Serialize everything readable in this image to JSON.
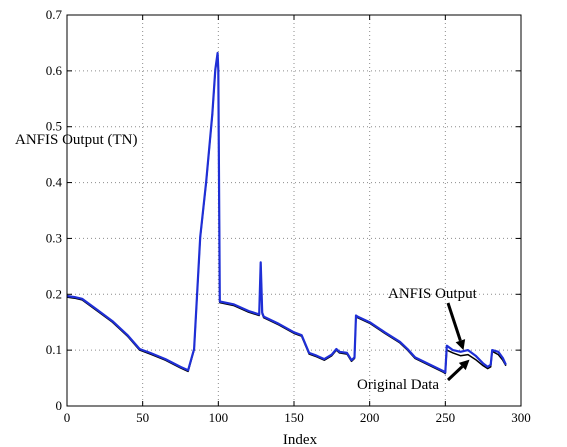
{
  "chart_data": {
    "type": "line",
    "title": "",
    "xlabel": "Index",
    "ylabel": "ANFIS Output  (TN)",
    "xlim": [
      0,
      300
    ],
    "ylim": [
      0,
      0.7
    ],
    "xticks": [
      0,
      50,
      100,
      150,
      200,
      250,
      300
    ],
    "yticks": [
      0,
      0.1,
      0.2,
      0.3,
      0.4,
      0.5,
      0.6,
      0.7
    ],
    "xtick_labels": [
      "0",
      "50",
      "100",
      "150",
      "200",
      "250",
      "300"
    ],
    "ytick_labels": [
      "0",
      "0.1",
      "0.2",
      "0.3",
      "0.4",
      "0.5",
      "0.6",
      "0.7"
    ],
    "grid": true,
    "series": [
      {
        "name": "Original Data",
        "color": "#000000",
        "x": [
          0,
          5,
          10,
          20,
          30,
          40,
          48,
          55,
          65,
          75,
          80,
          84,
          88,
          92,
          96,
          98,
          99.5,
          100,
          101,
          110,
          120,
          127,
          128,
          129,
          130,
          140,
          150,
          155,
          160,
          165,
          170,
          175,
          178,
          180,
          185,
          188,
          190,
          191,
          192,
          200,
          210,
          220,
          225,
          230,
          240,
          249,
          250,
          251,
          255,
          260,
          265,
          270,
          275,
          278,
          280,
          281,
          285,
          288,
          290
        ],
        "y": [
          0.195,
          0.193,
          0.19,
          0.17,
          0.15,
          0.125,
          0.1,
          0.093,
          0.082,
          0.068,
          0.062,
          0.1,
          0.3,
          0.4,
          0.52,
          0.6,
          0.63,
          0.6,
          0.185,
          0.18,
          0.168,
          0.162,
          0.255,
          0.165,
          0.158,
          0.145,
          0.13,
          0.125,
          0.093,
          0.088,
          0.082,
          0.09,
          0.1,
          0.095,
          0.093,
          0.08,
          0.085,
          0.16,
          0.158,
          0.148,
          0.13,
          0.113,
          0.1,
          0.085,
          0.072,
          0.06,
          0.058,
          0.1,
          0.095,
          0.09,
          0.092,
          0.083,
          0.072,
          0.067,
          0.07,
          0.098,
          0.092,
          0.082,
          0.072
        ]
      },
      {
        "name": "ANFIS Output",
        "color": "#1f2fd6",
        "x": [
          0,
          5,
          10,
          20,
          30,
          40,
          48,
          55,
          65,
          75,
          80,
          84,
          88,
          92,
          96,
          98,
          99.5,
          100,
          101,
          110,
          120,
          127,
          128,
          129,
          130,
          140,
          150,
          155,
          160,
          165,
          170,
          175,
          178,
          180,
          185,
          188,
          190,
          191,
          192,
          200,
          210,
          220,
          225,
          230,
          240,
          249,
          250,
          251,
          255,
          260,
          265,
          270,
          275,
          278,
          280,
          281,
          285,
          288,
          290
        ],
        "y": [
          0.197,
          0.195,
          0.192,
          0.172,
          0.152,
          0.127,
          0.102,
          0.095,
          0.084,
          0.07,
          0.064,
          0.102,
          0.302,
          0.402,
          0.522,
          0.602,
          0.632,
          0.602,
          0.187,
          0.182,
          0.17,
          0.164,
          0.257,
          0.167,
          0.16,
          0.147,
          0.132,
          0.127,
          0.095,
          0.09,
          0.084,
          0.092,
          0.102,
          0.097,
          0.095,
          0.082,
          0.087,
          0.162,
          0.16,
          0.15,
          0.132,
          0.115,
          0.102,
          0.087,
          0.074,
          0.062,
          0.06,
          0.108,
          0.1,
          0.097,
          0.1,
          0.09,
          0.076,
          0.07,
          0.074,
          0.1,
          0.097,
          0.086,
          0.074
        ]
      }
    ],
    "annotations": [
      {
        "text": "ANFIS Output",
        "arrow_to": [
          262,
          0.1
        ]
      },
      {
        "text": "Original  Data",
        "arrow_to": [
          266,
          0.083
        ]
      }
    ]
  }
}
